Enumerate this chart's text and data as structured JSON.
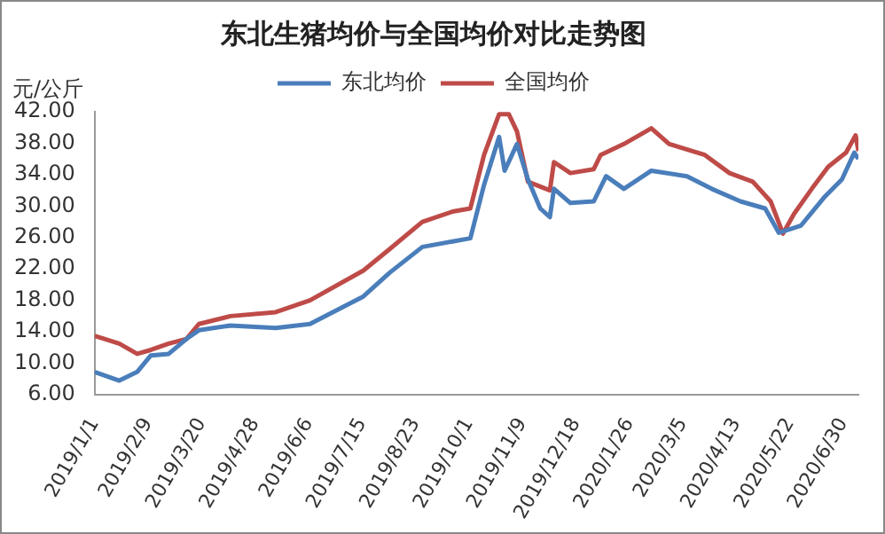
{
  "chart_data": {
    "type": "line",
    "title": "东北生猪均价与全国均价对比走势图",
    "ylabel": "元/公斤",
    "series": [
      {
        "name": "东北均价",
        "color": "#4a7ebb",
        "x": [
          "2019-01-01",
          "2019-01-19",
          "2019-02-01",
          "2019-02-11",
          "2019-02-24",
          "2019-03-09",
          "2019-03-18",
          "2019-04-10",
          "2019-05-13",
          "2019-06-07",
          "2019-07-16",
          "2019-08-04",
          "2019-08-28",
          "2019-09-19",
          "2019-10-02",
          "2019-10-12",
          "2019-10-23",
          "2019-10-27",
          "2019-11-05",
          "2019-11-13",
          "2019-11-22",
          "2019-11-29",
          "2019-12-02",
          "2019-12-14",
          "2019-12-31",
          "2020-01-09",
          "2020-01-22",
          "2020-02-11",
          "2020-03-08",
          "2020-03-26",
          "2020-04-16",
          "2020-05-04",
          "2020-05-14",
          "2020-05-30",
          "2020-06-16",
          "2020-06-29",
          "2020-07-08",
          "2020-07-11"
        ],
        "values": [
          8.9,
          7.8,
          8.9,
          11.0,
          11.2,
          13.1,
          14.2,
          14.8,
          14.5,
          15.0,
          18.5,
          21.5,
          24.8,
          25.5,
          25.9,
          32.7,
          38.8,
          34.5,
          37.9,
          33.4,
          29.7,
          28.6,
          32.2,
          30.4,
          30.6,
          33.8,
          32.2,
          34.5,
          33.8,
          32.2,
          30.6,
          29.7,
          26.6,
          27.5,
          31.1,
          33.4,
          36.8,
          36.0
        ]
      },
      {
        "name": "全国均价",
        "color": "#be4b48",
        "x": [
          "2019-01-01",
          "2019-01-19",
          "2019-02-01",
          "2019-02-11",
          "2019-02-24",
          "2019-03-09",
          "2019-03-18",
          "2019-04-10",
          "2019-05-13",
          "2019-06-07",
          "2019-07-16",
          "2019-08-04",
          "2019-08-28",
          "2019-09-19",
          "2019-10-02",
          "2019-10-12",
          "2019-10-23",
          "2019-10-30",
          "2019-11-05",
          "2019-11-13",
          "2019-11-29",
          "2019-12-02",
          "2019-12-14",
          "2019-12-31",
          "2020-01-05",
          "2020-01-22",
          "2020-02-11",
          "2020-02-24",
          "2020-03-21",
          "2020-04-08",
          "2020-04-25",
          "2020-05-08",
          "2020-05-17",
          "2020-05-25",
          "2020-06-07",
          "2020-06-19",
          "2020-07-02",
          "2020-07-09",
          "2020-07-11"
        ],
        "values": [
          13.5,
          12.5,
          11.2,
          11.7,
          12.5,
          13.1,
          15.0,
          16.0,
          16.5,
          18.0,
          21.8,
          24.5,
          28.0,
          29.3,
          29.7,
          36.5,
          41.7,
          41.7,
          39.5,
          33.1,
          32.0,
          35.6,
          34.2,
          34.7,
          36.5,
          37.9,
          39.9,
          37.9,
          36.5,
          34.2,
          33.1,
          30.6,
          26.5,
          29.0,
          32.2,
          35.0,
          36.8,
          39.0,
          37.0
        ]
      }
    ],
    "xlim": [
      "2019-01-01",
      "2020-07-11"
    ],
    "xticks": [
      {
        "value": "2019-01-01",
        "label": "2019/1/1"
      },
      {
        "value": "2019-02-09",
        "label": "2019/2/9"
      },
      {
        "value": "2019-03-20",
        "label": "2019/3/20"
      },
      {
        "value": "2019-04-28",
        "label": "2019/4/28"
      },
      {
        "value": "2019-06-06",
        "label": "2019/6/6"
      },
      {
        "value": "2019-07-15",
        "label": "2019/7/15"
      },
      {
        "value": "2019-08-23",
        "label": "2019/8/23"
      },
      {
        "value": "2019-10-01",
        "label": "2019/10/1"
      },
      {
        "value": "2019-11-09",
        "label": "2019/11/9"
      },
      {
        "value": "2019-12-18",
        "label": "2019/12/18"
      },
      {
        "value": "2020-01-26",
        "label": "2020/1/26"
      },
      {
        "value": "2020-03-05",
        "label": "2020/3/5"
      },
      {
        "value": "2020-04-13",
        "label": "2020/4/13"
      },
      {
        "value": "2020-05-22",
        "label": "2020/5/22"
      },
      {
        "value": "2020-06-30",
        "label": "2020/6/30"
      }
    ],
    "ylim": [
      6,
      42
    ],
    "yticks": [
      {
        "value": 6,
        "label": "6.00"
      },
      {
        "value": 10,
        "label": "10.00"
      },
      {
        "value": 14,
        "label": "14.00"
      },
      {
        "value": 18,
        "label": "18.00"
      },
      {
        "value": 22,
        "label": "22.00"
      },
      {
        "value": 26,
        "label": "26.00"
      },
      {
        "value": 30,
        "label": "30.00"
      },
      {
        "value": 34,
        "label": "34.00"
      },
      {
        "value": 38,
        "label": "38.00"
      },
      {
        "value": 42,
        "label": "42.00"
      }
    ],
    "grid": false,
    "legend": "top",
    "marker": "none",
    "line_style": "solid"
  }
}
